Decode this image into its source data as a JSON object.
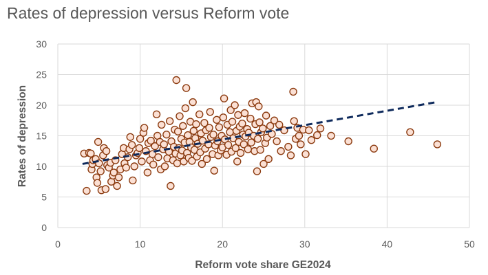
{
  "chart_data": {
    "type": "scatter",
    "title": "Rates of depression versus Reform vote",
    "xlabel": "Reform vote share GE2024",
    "ylabel": "Rates of depression",
    "xlim": [
      0,
      50
    ],
    "ylim": [
      0,
      30
    ],
    "x_ticks": [
      "0",
      "10",
      "20",
      "30",
      "40",
      "50"
    ],
    "y_ticks": [
      "0",
      "5",
      "10",
      "15",
      "20",
      "25",
      "30"
    ],
    "grid": true,
    "trendline": {
      "style": "dashed",
      "color": "#0e2a5c",
      "x": [
        3,
        46
      ],
      "y": [
        10.4,
        20.5
      ]
    },
    "marker": {
      "fill": "#fbe0d4",
      "edge": "#8b3a0f"
    },
    "points": [
      [
        3.2,
        12.1
      ],
      [
        3.5,
        6.0
      ],
      [
        3.8,
        12.2
      ],
      [
        4.0,
        12.1
      ],
      [
        4.1,
        9.5
      ],
      [
        4.2,
        10.4
      ],
      [
        4.3,
        11.0
      ],
      [
        4.6,
        11.2
      ],
      [
        4.7,
        8.2
      ],
      [
        4.8,
        7.3
      ],
      [
        4.9,
        14.0
      ],
      [
        5.0,
        10.5
      ],
      [
        5.2,
        9.2
      ],
      [
        5.3,
        6.1
      ],
      [
        5.5,
        11.8
      ],
      [
        5.6,
        13.0
      ],
      [
        5.8,
        6.3
      ],
      [
        5.9,
        12.5
      ],
      [
        6.0,
        10.2
      ],
      [
        6.2,
        9.8
      ],
      [
        6.4,
        10.6
      ],
      [
        6.5,
        7.5
      ],
      [
        6.7,
        8.5
      ],
      [
        6.8,
        9.0
      ],
      [
        7.0,
        11.0
      ],
      [
        7.2,
        6.8
      ],
      [
        7.4,
        8.2
      ],
      [
        7.6,
        9.5
      ],
      [
        7.8,
        12.0
      ],
      [
        8.0,
        13.0
      ],
      [
        8.1,
        10.5
      ],
      [
        8.3,
        9.8
      ],
      [
        8.5,
        11.5
      ],
      [
        8.7,
        12.8
      ],
      [
        8.8,
        14.8
      ],
      [
        9.0,
        13.5
      ],
      [
        9.1,
        7.7
      ],
      [
        9.3,
        10.0
      ],
      [
        9.5,
        11.8
      ],
      [
        9.7,
        12.2
      ],
      [
        9.9,
        13.0
      ],
      [
        10.0,
        14.5
      ],
      [
        10.2,
        10.8
      ],
      [
        10.4,
        15.5
      ],
      [
        10.5,
        16.3
      ],
      [
        10.7,
        12.5
      ],
      [
        10.9,
        9.0
      ],
      [
        11.0,
        13.8
      ],
      [
        11.2,
        11.0
      ],
      [
        11.3,
        14.2
      ],
      [
        11.5,
        12.0
      ],
      [
        11.6,
        10.3
      ],
      [
        11.8,
        13.3
      ],
      [
        12.0,
        18.5
      ],
      [
        12.1,
        15.0
      ],
      [
        12.2,
        11.5
      ],
      [
        12.4,
        14.0
      ],
      [
        12.5,
        9.5
      ],
      [
        12.6,
        16.8
      ],
      [
        12.8,
        12.8
      ],
      [
        12.9,
        13.6
      ],
      [
        13.0,
        10.0
      ],
      [
        13.2,
        15.2
      ],
      [
        13.3,
        11.3
      ],
      [
        13.5,
        12.4
      ],
      [
        13.6,
        17.4
      ],
      [
        13.7,
        6.8
      ],
      [
        13.8,
        14.1
      ],
      [
        14.0,
        11.0
      ],
      [
        14.1,
        13.2
      ],
      [
        14.2,
        16.0
      ],
      [
        14.3,
        12.1
      ],
      [
        14.4,
        24.1
      ],
      [
        14.5,
        10.5
      ],
      [
        14.6,
        15.7
      ],
      [
        14.7,
        13.0
      ],
      [
        14.8,
        18.2
      ],
      [
        14.9,
        11.8
      ],
      [
        15.0,
        14.5
      ],
      [
        15.1,
        12.6
      ],
      [
        15.2,
        16.6
      ],
      [
        15.3,
        10.8
      ],
      [
        15.4,
        13.9
      ],
      [
        15.5,
        19.5
      ],
      [
        15.6,
        22.8
      ],
      [
        15.7,
        12.2
      ],
      [
        15.8,
        15.1
      ],
      [
        15.9,
        11.4
      ],
      [
        16.0,
        14.0
      ],
      [
        16.1,
        17.3
      ],
      [
        16.2,
        13.1
      ],
      [
        16.3,
        10.9
      ],
      [
        16.4,
        20.5
      ],
      [
        16.5,
        15.8
      ],
      [
        16.6,
        12.7
      ],
      [
        16.7,
        14.6
      ],
      [
        16.8,
        16.9
      ],
      [
        16.9,
        11.6
      ],
      [
        17.0,
        13.7
      ],
      [
        17.2,
        18.5
      ],
      [
        17.3,
        12.3
      ],
      [
        17.4,
        15.4
      ],
      [
        17.5,
        10.4
      ],
      [
        17.6,
        14.2
      ],
      [
        17.8,
        17.1
      ],
      [
        17.9,
        12.9
      ],
      [
        18.0,
        15.9
      ],
      [
        18.1,
        11.2
      ],
      [
        18.3,
        13.6
      ],
      [
        18.4,
        16.3
      ],
      [
        18.5,
        18.9
      ],
      [
        18.6,
        14.8
      ],
      [
        18.8,
        12.0
      ],
      [
        18.9,
        15.2
      ],
      [
        19.0,
        9.3
      ],
      [
        19.1,
        13.4
      ],
      [
        19.3,
        17.6
      ],
      [
        19.4,
        14.1
      ],
      [
        19.5,
        11.8
      ],
      [
        19.6,
        16.4
      ],
      [
        19.8,
        12.6
      ],
      [
        19.9,
        15.0
      ],
      [
        20.0,
        13.1
      ],
      [
        20.1,
        18.0
      ],
      [
        20.2,
        21.1
      ],
      [
        20.3,
        14.4
      ],
      [
        20.5,
        11.9
      ],
      [
        20.6,
        16.8
      ],
      [
        20.7,
        13.5
      ],
      [
        20.9,
        15.6
      ],
      [
        21.0,
        19.2
      ],
      [
        21.1,
        12.4
      ],
      [
        21.2,
        17.3
      ],
      [
        21.3,
        14.6
      ],
      [
        21.5,
        20.0
      ],
      [
        21.6,
        13.0
      ],
      [
        21.7,
        15.8
      ],
      [
        21.8,
        10.8
      ],
      [
        21.9,
        18.4
      ],
      [
        22.0,
        14.0
      ],
      [
        22.1,
        16.5
      ],
      [
        22.2,
        12.2
      ],
      [
        22.4,
        17.0
      ],
      [
        22.5,
        15.2
      ],
      [
        22.6,
        13.6
      ],
      [
        22.7,
        18.7
      ],
      [
        22.8,
        14.9
      ],
      [
        23.0,
        16.1
      ],
      [
        23.1,
        12.8
      ],
      [
        23.2,
        15.5
      ],
      [
        23.4,
        17.8
      ],
      [
        23.5,
        13.9
      ],
      [
        23.6,
        20.3
      ],
      [
        23.8,
        15.0
      ],
      [
        23.9,
        12.5
      ],
      [
        24.0,
        16.9
      ],
      [
        24.1,
        20.5
      ],
      [
        24.2,
        9.2
      ],
      [
        24.3,
        14.5
      ],
      [
        24.4,
        19.8
      ],
      [
        24.5,
        17.2
      ],
      [
        24.6,
        12.7
      ],
      [
        24.7,
        15.6
      ],
      [
        24.9,
        16.2
      ],
      [
        25.0,
        10.4
      ],
      [
        25.2,
        13.8
      ],
      [
        25.3,
        18.3
      ],
      [
        25.4,
        14.7
      ],
      [
        25.6,
        11.2
      ],
      [
        25.8,
        16.6
      ],
      [
        26.0,
        15.3
      ],
      [
        26.3,
        17.5
      ],
      [
        26.6,
        14.1
      ],
      [
        26.9,
        16.8
      ],
      [
        27.1,
        12.5
      ],
      [
        27.5,
        15.9
      ],
      [
        28.0,
        13.2
      ],
      [
        28.3,
        11.8
      ],
      [
        28.6,
        22.2
      ],
      [
        28.7,
        17.4
      ],
      [
        28.9,
        14.5
      ],
      [
        29.1,
        16.3
      ],
      [
        29.3,
        15.0
      ],
      [
        29.5,
        13.6
      ],
      [
        29.8,
        16.0
      ],
      [
        30.1,
        12.0
      ],
      [
        30.5,
        15.9
      ],
      [
        30.8,
        14.3
      ],
      [
        31.5,
        15.1
      ],
      [
        31.9,
        16.2
      ],
      [
        33.2,
        15.0
      ],
      [
        35.3,
        14.1
      ],
      [
        38.4,
        12.9
      ],
      [
        42.8,
        15.6
      ],
      [
        46.1,
        13.6
      ]
    ]
  }
}
